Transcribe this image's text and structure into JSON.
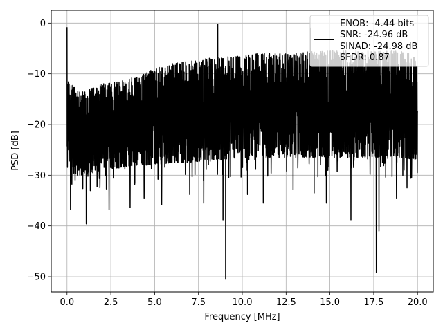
{
  "chart_data": {
    "type": "line",
    "title": "",
    "xlabel": "Frequency [MHz]",
    "ylabel": "PSD [dB]",
    "xlim": [
      -0.9,
      20.9
    ],
    "ylim": [
      -53,
      2.5
    ],
    "x_ticks": [
      0.0,
      2.5,
      5.0,
      7.5,
      10.0,
      12.5,
      15.0,
      17.5,
      20.0
    ],
    "x_tick_labels": [
      "0.0",
      "2.5",
      "5.0",
      "7.5",
      "10.0",
      "12.5",
      "15.0",
      "17.5",
      "20.0"
    ],
    "y_ticks": [
      0,
      -10,
      -20,
      -30,
      -40,
      -50
    ],
    "y_tick_labels": [
      "0",
      "−10",
      "−20",
      "−30",
      "−40",
      "−50"
    ],
    "grid": true,
    "legend": {
      "placement": "top-right",
      "entries": [
        "ENOB: -4.44 bits",
        "SNR: -24.96 dB",
        "SINAD: -24.98 dB",
        "SFDR: 0.87"
      ]
    },
    "series": [
      {
        "color": "#000000",
        "style": "noise spectrum",
        "x_range": [
          0,
          20
        ],
        "envelope": {
          "x": [
            0,
            0.5,
            1,
            2,
            3,
            4,
            5,
            6,
            7,
            8,
            9,
            10,
            11,
            12,
            13,
            14,
            15,
            16,
            17,
            18,
            19,
            20
          ],
          "upper": [
            -11,
            -13,
            -13.5,
            -12,
            -11.5,
            -10.5,
            -9,
            -8,
            -7.5,
            -7,
            -6.5,
            -6.5,
            -6,
            -6,
            -6,
            -5.5,
            -5.5,
            -5.5,
            -5.5,
            -5.5,
            -5.5,
            -6.5
          ],
          "lower": [
            -29,
            -30,
            -30,
            -29,
            -28.5,
            -28,
            -28,
            -27.5,
            -27.5,
            -27,
            -27,
            -26.5,
            -26.5,
            -26.5,
            -26.5,
            -26.5,
            -26.5,
            -26.5,
            -26.5,
            -26.5,
            -26.5,
            -27
          ]
        },
        "peaks": [
          {
            "x": 0.0,
            "y": -0.8
          },
          {
            "x": 8.6,
            "y": -0.2
          },
          {
            "x": 13.9,
            "y": -1.0
          }
        ],
        "dips": [
          {
            "x": 0.2,
            "y": -36.8
          },
          {
            "x": 1.1,
            "y": -39.6
          },
          {
            "x": 2.4,
            "y": -36.8
          },
          {
            "x": 3.6,
            "y": -36.4
          },
          {
            "x": 4.4,
            "y": -34.5
          },
          {
            "x": 5.4,
            "y": -35.8
          },
          {
            "x": 7.0,
            "y": -33.8
          },
          {
            "x": 7.8,
            "y": -35.5
          },
          {
            "x": 8.9,
            "y": -38.8
          },
          {
            "x": 9.05,
            "y": -50.5
          },
          {
            "x": 10.3,
            "y": -33.8
          },
          {
            "x": 11.2,
            "y": -35.5
          },
          {
            "x": 12.9,
            "y": -32.8
          },
          {
            "x": 14.1,
            "y": -33.5
          },
          {
            "x": 14.8,
            "y": -35.5
          },
          {
            "x": 16.2,
            "y": -38.8
          },
          {
            "x": 17.65,
            "y": -49.2
          },
          {
            "x": 17.8,
            "y": -41.0
          },
          {
            "x": 18.8,
            "y": -34.5
          },
          {
            "x": 19.4,
            "y": -32.5
          }
        ]
      }
    ]
  }
}
